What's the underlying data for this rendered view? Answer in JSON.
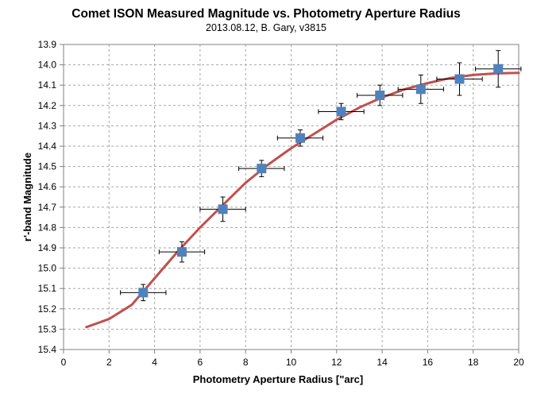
{
  "chart_data": {
    "type": "scatter",
    "title": "Comet ISON Measured Magnitude vs. Photometry Aperture Radius",
    "subtitle": "2013.08.12,  B. Gary,  v3815",
    "xlabel": "Photometry Aperture Radius [\"arc]",
    "ylabel": "r'-band Magnitude",
    "xlim": [
      0,
      20
    ],
    "ylim": [
      13.9,
      15.4
    ],
    "y_reversed": true,
    "x_ticks": [
      0,
      2,
      4,
      6,
      8,
      10,
      12,
      14,
      16,
      18,
      20
    ],
    "x_tick_labels": [
      "0",
      "2",
      "4",
      "6",
      "8",
      "10",
      "12",
      "14",
      "16",
      "18",
      "20"
    ],
    "y_ticks": [
      13.9,
      14.0,
      14.1,
      14.2,
      14.3,
      14.4,
      14.5,
      14.6,
      14.7,
      14.8,
      14.9,
      15.0,
      15.1,
      15.2,
      15.3,
      15.4
    ],
    "y_tick_labels": [
      "13.9",
      "14.0",
      "14.1",
      "14.2",
      "14.3",
      "14.4",
      "14.5",
      "14.6",
      "14.7",
      "14.8",
      "14.9",
      "15.0",
      "15.1",
      "15.2",
      "15.3",
      "15.4"
    ],
    "grid": true,
    "series": [
      {
        "kind": "measured",
        "color": "#4f81bd",
        "points": [
          {
            "x": 3.5,
            "y": 15.12,
            "xerr": 1.0,
            "yerr": 0.04
          },
          {
            "x": 5.2,
            "y": 14.92,
            "xerr": 1.0,
            "yerr": 0.05
          },
          {
            "x": 7.0,
            "y": 14.71,
            "xerr": 1.0,
            "yerr": 0.06
          },
          {
            "x": 8.7,
            "y": 14.51,
            "xerr": 1.0,
            "yerr": 0.04
          },
          {
            "x": 10.4,
            "y": 14.36,
            "xerr": 1.0,
            "yerr": 0.04
          },
          {
            "x": 12.2,
            "y": 14.23,
            "xerr": 1.0,
            "yerr": 0.04
          },
          {
            "x": 13.9,
            "y": 14.15,
            "xerr": 1.0,
            "yerr": 0.05
          },
          {
            "x": 15.7,
            "y": 14.12,
            "xerr": 1.0,
            "yerr": 0.07
          },
          {
            "x": 17.4,
            "y": 14.07,
            "xerr": 1.0,
            "yerr": 0.08
          },
          {
            "x": 19.1,
            "y": 14.02,
            "xerr": 1.0,
            "yerr": 0.09
          }
        ]
      },
      {
        "kind": "model",
        "color": "#c0504d",
        "x": [
          1,
          2,
          3,
          4,
          5,
          6,
          7,
          8,
          9,
          10,
          11,
          12,
          13,
          14,
          15,
          16,
          17,
          18,
          19,
          20
        ],
        "y": [
          15.29,
          15.25,
          15.18,
          15.05,
          14.92,
          14.8,
          14.69,
          14.58,
          14.49,
          14.41,
          14.34,
          14.27,
          14.21,
          14.16,
          14.12,
          14.09,
          14.065,
          14.05,
          14.042,
          14.04
        ]
      }
    ]
  }
}
